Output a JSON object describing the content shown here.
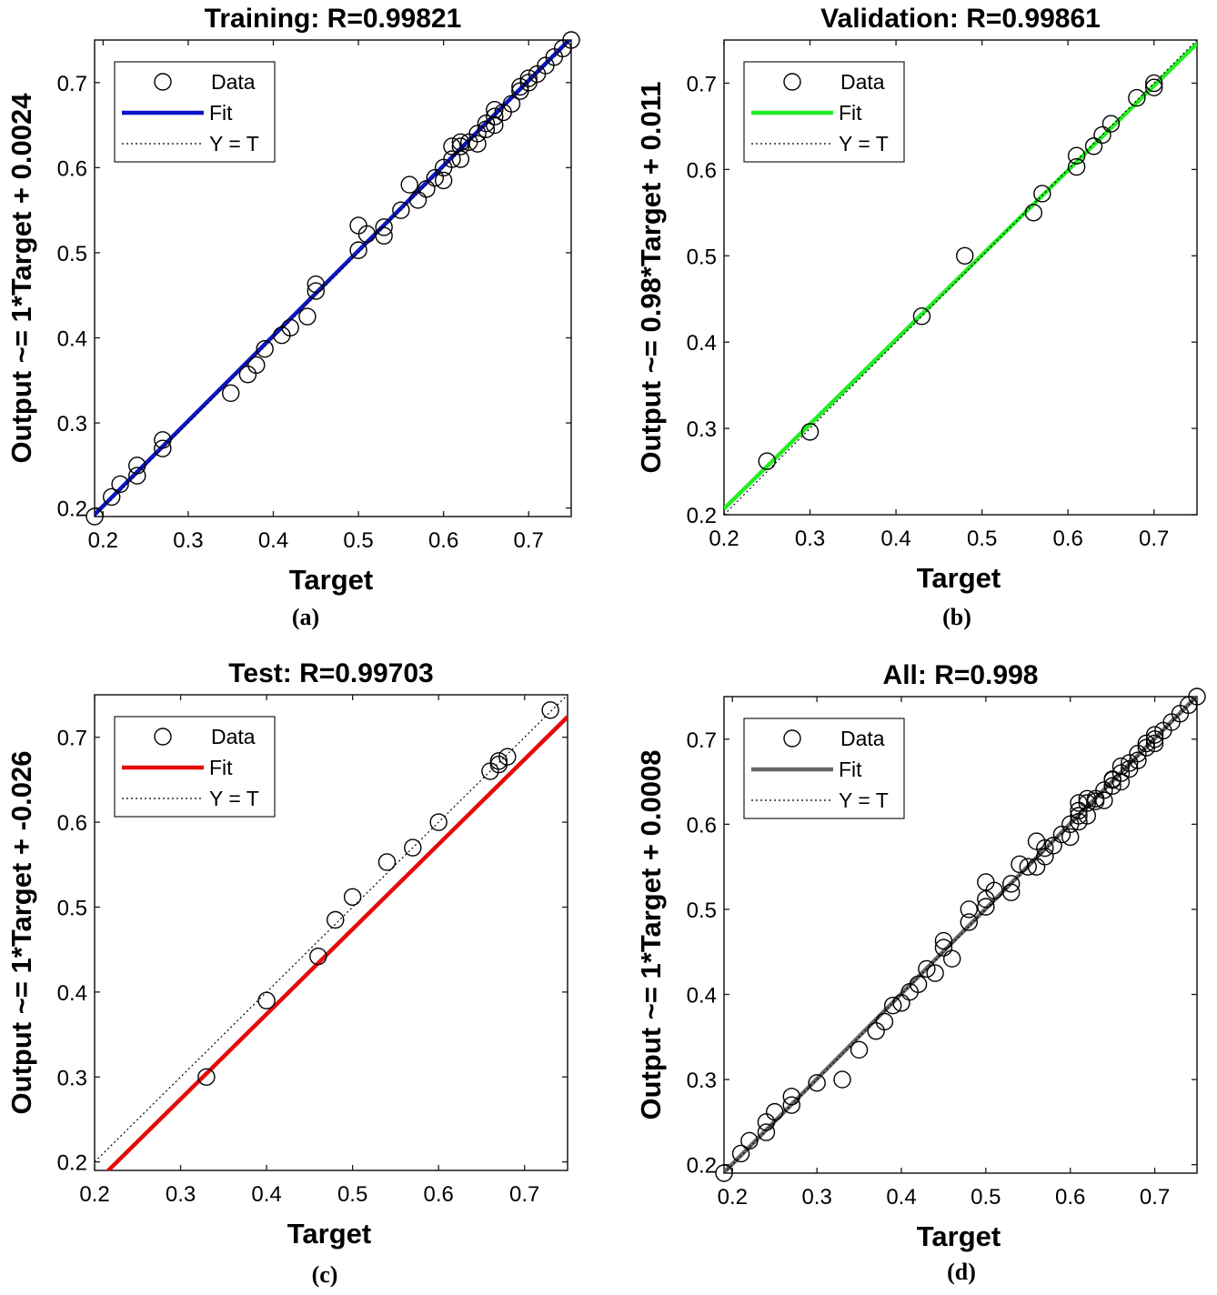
{
  "chart_data": [
    {
      "type": "scatter",
      "title": "Training: R=0.99821",
      "xlabel": "Target",
      "ylabel": "Output ~= 1*Target + 0.0024",
      "caption": "(a)",
      "xlim": [
        0.19,
        0.75
      ],
      "ylim": [
        0.19,
        0.75
      ],
      "xticks": [
        "0.2",
        "0.3",
        "0.4",
        "0.5",
        "0.6",
        "0.7"
      ],
      "yticks": [
        "0.2",
        "0.3",
        "0.4",
        "0.5",
        "0.6",
        "0.7"
      ],
      "fit": {
        "slope": 1.0,
        "intercept": 0.0024,
        "color": "#0a14c8"
      },
      "legend": {
        "data": "Data",
        "fit": "Fit",
        "ref": "Y = T",
        "position": "top-left"
      },
      "points": [
        [
          0.19,
          0.19
        ],
        [
          0.21,
          0.213
        ],
        [
          0.22,
          0.228
        ],
        [
          0.24,
          0.238
        ],
        [
          0.24,
          0.25
        ],
        [
          0.27,
          0.27
        ],
        [
          0.27,
          0.28
        ],
        [
          0.35,
          0.335
        ],
        [
          0.37,
          0.357
        ],
        [
          0.38,
          0.368
        ],
        [
          0.39,
          0.387
        ],
        [
          0.41,
          0.403
        ],
        [
          0.42,
          0.412
        ],
        [
          0.44,
          0.425
        ],
        [
          0.45,
          0.455
        ],
        [
          0.45,
          0.463
        ],
        [
          0.5,
          0.503
        ],
        [
          0.5,
          0.532
        ],
        [
          0.51,
          0.522
        ],
        [
          0.53,
          0.52
        ],
        [
          0.53,
          0.53
        ],
        [
          0.55,
          0.55
        ],
        [
          0.56,
          0.58
        ],
        [
          0.57,
          0.562
        ],
        [
          0.58,
          0.575
        ],
        [
          0.59,
          0.588
        ],
        [
          0.6,
          0.585
        ],
        [
          0.6,
          0.6
        ],
        [
          0.61,
          0.61
        ],
        [
          0.61,
          0.625
        ],
        [
          0.62,
          0.61
        ],
        [
          0.62,
          0.63
        ],
        [
          0.62,
          0.625
        ],
        [
          0.63,
          0.63
        ],
        [
          0.64,
          0.628
        ],
        [
          0.64,
          0.64
        ],
        [
          0.65,
          0.645
        ],
        [
          0.65,
          0.652
        ],
        [
          0.66,
          0.65
        ],
        [
          0.66,
          0.66
        ],
        [
          0.66,
          0.668
        ],
        [
          0.67,
          0.665
        ],
        [
          0.68,
          0.675
        ],
        [
          0.69,
          0.69
        ],
        [
          0.69,
          0.695
        ],
        [
          0.7,
          0.7
        ],
        [
          0.7,
          0.705
        ],
        [
          0.71,
          0.71
        ],
        [
          0.72,
          0.72
        ],
        [
          0.73,
          0.73
        ],
        [
          0.74,
          0.74
        ],
        [
          0.75,
          0.75
        ]
      ]
    },
    {
      "type": "scatter",
      "title": "Validation: R=0.99861",
      "xlabel": "Target",
      "ylabel": "Output ~= 0.98*Target + 0.011",
      "caption": "(b)",
      "xlim": [
        0.2,
        0.75
      ],
      "ylim": [
        0.2,
        0.75
      ],
      "xticks": [
        "0.2",
        "0.3",
        "0.4",
        "0.5",
        "0.6",
        "0.7"
      ],
      "yticks": [
        "0.2",
        "0.3",
        "0.4",
        "0.5",
        "0.6",
        "0.7"
      ],
      "fit": {
        "slope": 0.98,
        "intercept": 0.011,
        "color": "#22ee22"
      },
      "legend": {
        "data": "Data",
        "fit": "Fit",
        "ref": "Y = T",
        "position": "top-left"
      },
      "points": [
        [
          0.25,
          0.262
        ],
        [
          0.3,
          0.296
        ],
        [
          0.43,
          0.43
        ],
        [
          0.48,
          0.5
        ],
        [
          0.56,
          0.55
        ],
        [
          0.57,
          0.572
        ],
        [
          0.61,
          0.603
        ],
        [
          0.61,
          0.616
        ],
        [
          0.63,
          0.627
        ],
        [
          0.64,
          0.64
        ],
        [
          0.65,
          0.653
        ],
        [
          0.68,
          0.683
        ],
        [
          0.7,
          0.695
        ],
        [
          0.7,
          0.7
        ]
      ]
    },
    {
      "type": "scatter",
      "title": "Test: R=0.99703",
      "xlabel": "Target",
      "ylabel": "Output ~= 1*Target + -0.026",
      "caption": "(c)",
      "xlim": [
        0.2,
        0.75
      ],
      "ylim": [
        0.19,
        0.75
      ],
      "xticks": [
        "0.2",
        "0.3",
        "0.4",
        "0.5",
        "0.6",
        "0.7"
      ],
      "yticks": [
        "0.2",
        "0.3",
        "0.4",
        "0.5",
        "0.6",
        "0.7"
      ],
      "fit": {
        "slope": 1.0,
        "intercept": -0.026,
        "color": "#e60a0a"
      },
      "legend": {
        "data": "Data",
        "fit": "Fit",
        "ref": "Y = T",
        "position": "top-left"
      },
      "points": [
        [
          0.33,
          0.3
        ],
        [
          0.4,
          0.39
        ],
        [
          0.46,
          0.442
        ],
        [
          0.48,
          0.485
        ],
        [
          0.5,
          0.512
        ],
        [
          0.54,
          0.553
        ],
        [
          0.57,
          0.57
        ],
        [
          0.6,
          0.6
        ],
        [
          0.66,
          0.66
        ],
        [
          0.67,
          0.668
        ],
        [
          0.67,
          0.672
        ],
        [
          0.68,
          0.677
        ],
        [
          0.73,
          0.732
        ]
      ]
    },
    {
      "type": "scatter",
      "title": "All: R=0.998",
      "xlabel": "Target",
      "ylabel": "Output ~= 1*Target + 0.0008",
      "caption": "(d)",
      "xlim": [
        0.19,
        0.75
      ],
      "ylim": [
        0.19,
        0.75
      ],
      "xticks": [
        "0.2",
        "0.3",
        "0.4",
        "0.5",
        "0.6",
        "0.7"
      ],
      "yticks": [
        "0.2",
        "0.3",
        "0.4",
        "0.5",
        "0.6",
        "0.7"
      ],
      "fit": {
        "slope": 1.0,
        "intercept": 0.0008,
        "color": "#666666"
      },
      "legend": {
        "data": "Data",
        "fit": "Fit",
        "ref": "Y = T",
        "position": "top-left"
      },
      "points": [
        [
          0.19,
          0.19
        ],
        [
          0.21,
          0.213
        ],
        [
          0.22,
          0.228
        ],
        [
          0.24,
          0.238
        ],
        [
          0.24,
          0.25
        ],
        [
          0.25,
          0.262
        ],
        [
          0.27,
          0.27
        ],
        [
          0.27,
          0.28
        ],
        [
          0.3,
          0.296
        ],
        [
          0.33,
          0.3
        ],
        [
          0.35,
          0.335
        ],
        [
          0.37,
          0.357
        ],
        [
          0.38,
          0.368
        ],
        [
          0.39,
          0.387
        ],
        [
          0.4,
          0.39
        ],
        [
          0.41,
          0.403
        ],
        [
          0.42,
          0.412
        ],
        [
          0.43,
          0.43
        ],
        [
          0.44,
          0.425
        ],
        [
          0.45,
          0.455
        ],
        [
          0.45,
          0.463
        ],
        [
          0.46,
          0.442
        ],
        [
          0.48,
          0.485
        ],
        [
          0.48,
          0.5
        ],
        [
          0.5,
          0.503
        ],
        [
          0.5,
          0.512
        ],
        [
          0.5,
          0.532
        ],
        [
          0.51,
          0.522
        ],
        [
          0.53,
          0.52
        ],
        [
          0.53,
          0.53
        ],
        [
          0.54,
          0.553
        ],
        [
          0.55,
          0.55
        ],
        [
          0.56,
          0.55
        ],
        [
          0.56,
          0.58
        ],
        [
          0.57,
          0.562
        ],
        [
          0.57,
          0.572
        ],
        [
          0.58,
          0.575
        ],
        [
          0.59,
          0.588
        ],
        [
          0.6,
          0.585
        ],
        [
          0.6,
          0.6
        ],
        [
          0.61,
          0.603
        ],
        [
          0.61,
          0.61
        ],
        [
          0.61,
          0.616
        ],
        [
          0.61,
          0.625
        ],
        [
          0.62,
          0.61
        ],
        [
          0.62,
          0.63
        ],
        [
          0.62,
          0.625
        ],
        [
          0.63,
          0.627
        ],
        [
          0.63,
          0.63
        ],
        [
          0.64,
          0.628
        ],
        [
          0.64,
          0.64
        ],
        [
          0.65,
          0.645
        ],
        [
          0.65,
          0.652
        ],
        [
          0.65,
          0.653
        ],
        [
          0.66,
          0.65
        ],
        [
          0.66,
          0.66
        ],
        [
          0.66,
          0.668
        ],
        [
          0.67,
          0.665
        ],
        [
          0.67,
          0.672
        ],
        [
          0.68,
          0.675
        ],
        [
          0.68,
          0.683
        ],
        [
          0.69,
          0.69
        ],
        [
          0.69,
          0.695
        ],
        [
          0.7,
          0.695
        ],
        [
          0.7,
          0.7
        ],
        [
          0.7,
          0.705
        ],
        [
          0.71,
          0.71
        ],
        [
          0.72,
          0.72
        ],
        [
          0.73,
          0.73
        ],
        [
          0.74,
          0.74
        ],
        [
          0.75,
          0.75
        ]
      ]
    }
  ]
}
